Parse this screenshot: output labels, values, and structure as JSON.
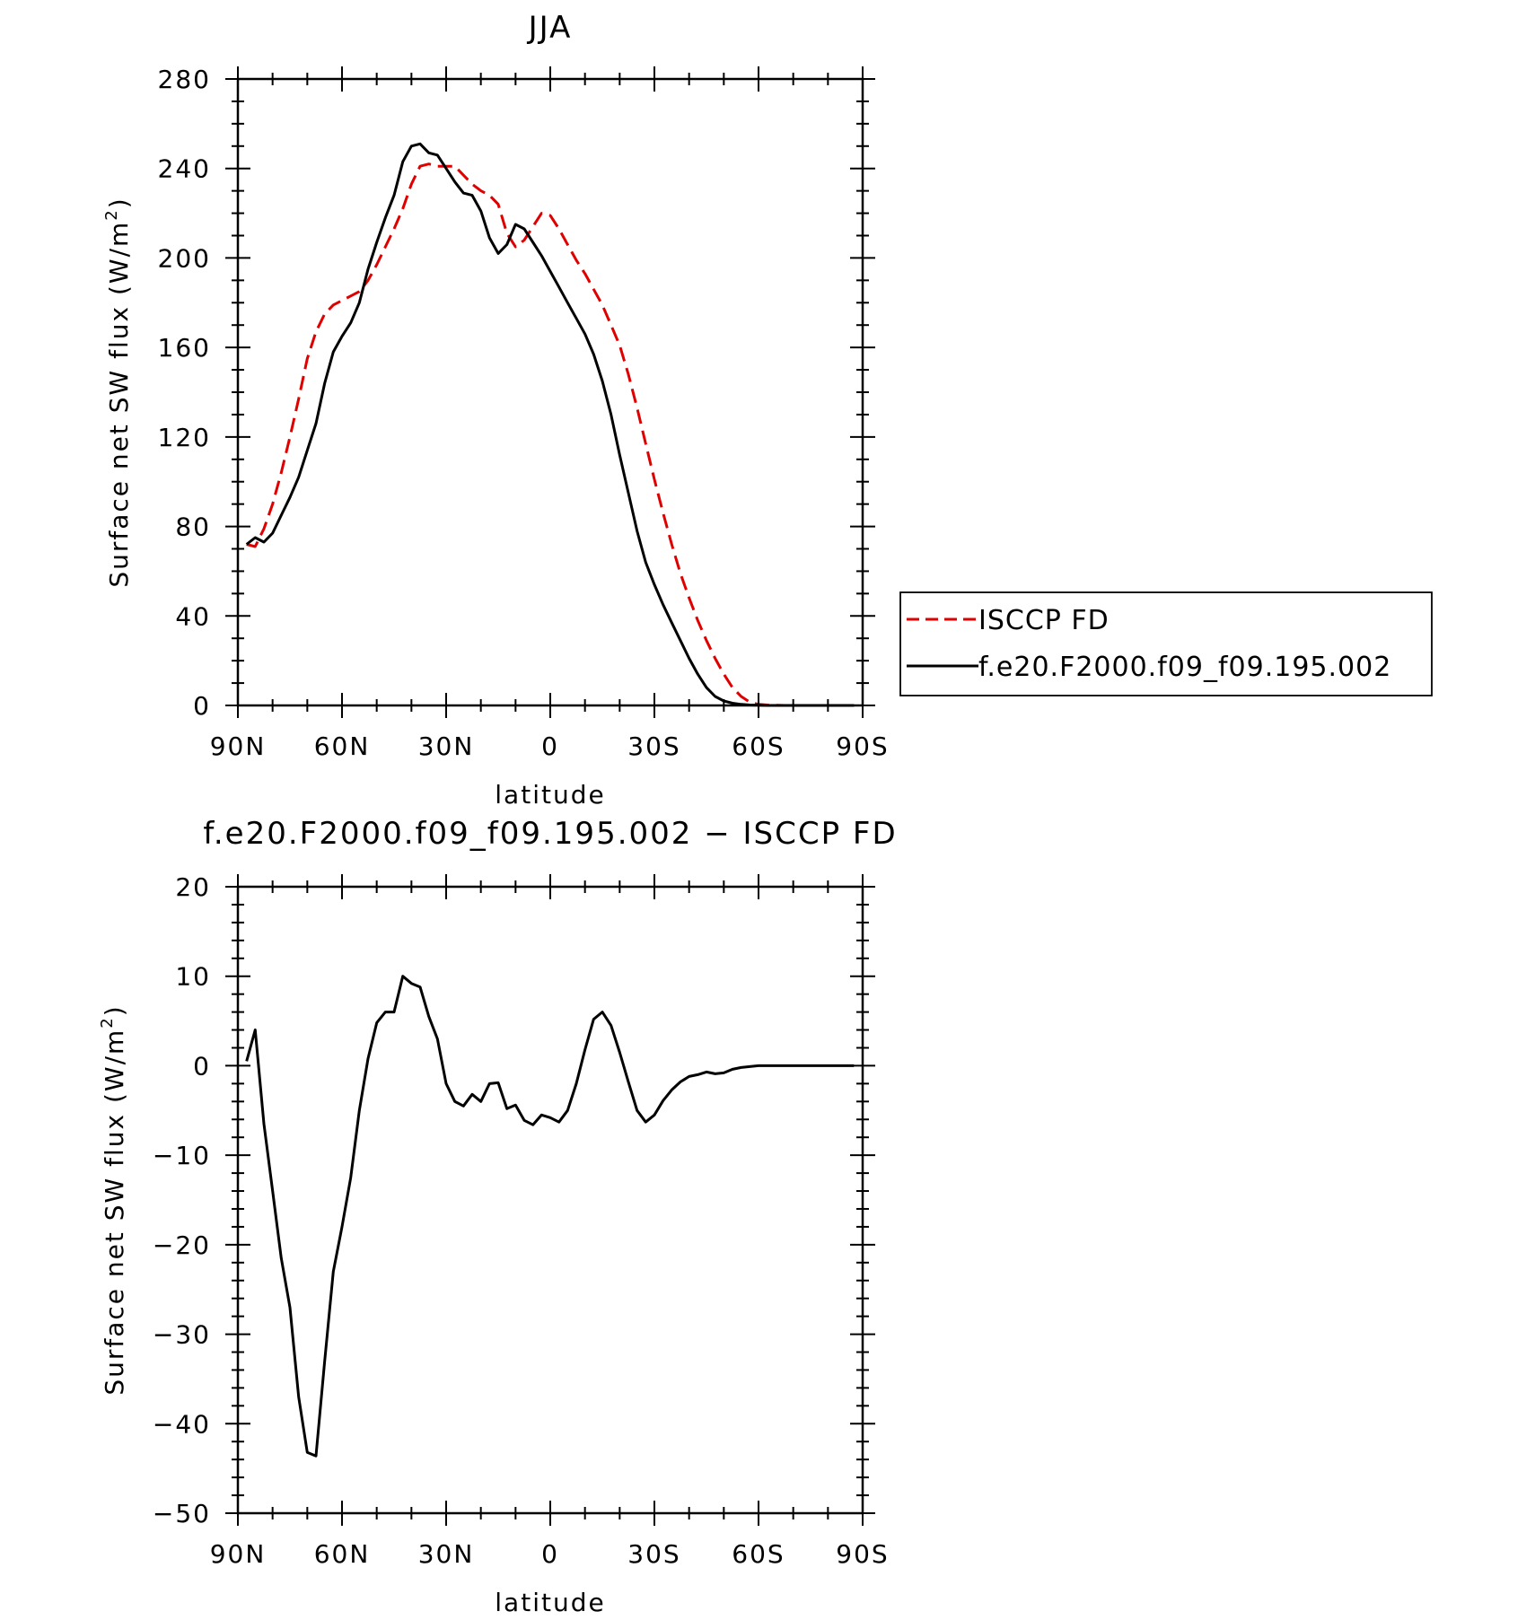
{
  "chart_data": [
    {
      "type": "line",
      "title": "JJA",
      "xlabel": "latitude",
      "ylabel": "Surface net SW flux (W/m",
      "ylabel_sup": "2",
      "ylabel_end": ")",
      "xlim": [
        -90,
        90
      ],
      "ylim": [
        0,
        280
      ],
      "x_direction": "north-to-south",
      "x_ticks": [
        {
          "value": -90,
          "label": "90N"
        },
        {
          "value": -60,
          "label": "60N"
        },
        {
          "value": -30,
          "label": "30N"
        },
        {
          "value": 0,
          "label": "0"
        },
        {
          "value": 30,
          "label": "30S"
        },
        {
          "value": 60,
          "label": "60S"
        },
        {
          "value": 90,
          "label": "90S"
        }
      ],
      "y_ticks": [
        0,
        40,
        80,
        120,
        160,
        200,
        240,
        280
      ],
      "grid": false,
      "legend_position": "right",
      "series": [
        {
          "name": "ISCCP FD",
          "color": "#e00000",
          "dash": "dashed",
          "x": [
            -87.5,
            -85,
            -82.5,
            -80,
            -77.5,
            -75,
            -72.5,
            -70,
            -67.5,
            -65,
            -62.5,
            -60,
            -57.5,
            -55,
            -52.5,
            -50,
            -47.5,
            -45,
            -42.5,
            -40,
            -37.5,
            -35,
            -32.5,
            -30,
            -27.5,
            -25,
            -22.5,
            -20,
            -17.5,
            -15,
            -12.5,
            -10,
            -7.5,
            -5,
            -2.5,
            0,
            2.5,
            5,
            7.5,
            10,
            12.5,
            15,
            17.5,
            20,
            22.5,
            25,
            27.5,
            30,
            32.5,
            35,
            37.5,
            40,
            42.5,
            45,
            47.5,
            50,
            52.5,
            55,
            57.5,
            60,
            62.5,
            65,
            67.5,
            70,
            72.5,
            75,
            77.5,
            80,
            82.5,
            85,
            87.5
          ],
          "y": [
            72,
            71,
            79,
            90,
            104,
            120,
            137,
            155,
            167,
            175,
            179,
            181,
            183,
            185,
            190,
            197,
            205,
            213,
            222,
            233,
            241,
            242,
            241,
            241,
            241,
            237,
            233,
            230,
            228,
            224,
            211,
            205,
            208,
            214,
            220,
            219,
            213,
            206,
            199,
            193,
            186,
            179,
            170,
            161,
            148,
            133,
            117,
            101,
            86,
            72,
            59,
            48,
            38,
            29,
            21,
            14,
            8,
            4,
            1.5,
            0.5,
            0.2,
            0.1,
            0,
            0,
            0,
            0,
            0,
            0,
            0,
            0,
            0
          ]
        },
        {
          "name": "f.e20.F2000.f09_f09.195.002",
          "color": "#000000",
          "dash": "solid",
          "x": [
            -87.5,
            -85,
            -82.5,
            -80,
            -77.5,
            -75,
            -72.5,
            -70,
            -67.5,
            -65,
            -62.5,
            -60,
            -57.5,
            -55,
            -52.5,
            -50,
            -47.5,
            -45,
            -42.5,
            -40,
            -37.5,
            -35,
            -32.5,
            -30,
            -27.5,
            -25,
            -22.5,
            -20,
            -17.5,
            -15,
            -12.5,
            -10,
            -7.5,
            -5,
            -2.5,
            0,
            2.5,
            5,
            7.5,
            10,
            12.5,
            15,
            17.5,
            20,
            22.5,
            25,
            27.5,
            30,
            32.5,
            35,
            37.5,
            40,
            42.5,
            45,
            47.5,
            50,
            52.5,
            55,
            57.5,
            60,
            62.5,
            65,
            67.5,
            70,
            72.5,
            75,
            77.5,
            80,
            82.5,
            85,
            87.5
          ],
          "y": [
            72,
            75,
            73,
            77,
            85,
            93,
            102,
            114,
            126,
            144,
            158,
            165,
            171,
            180,
            195,
            207,
            218,
            228,
            243,
            250,
            251,
            247,
            246,
            240,
            234,
            229,
            228,
            221,
            209,
            202,
            206,
            215,
            213,
            207,
            201,
            194,
            187,
            180,
            173,
            166,
            157,
            145,
            130,
            112,
            95,
            78,
            64,
            54,
            45,
            37,
            29,
            21,
            14,
            8,
            4,
            2,
            1,
            0.5,
            0.2,
            0.1,
            0,
            0,
            0,
            0,
            0,
            0,
            0,
            0,
            0,
            0,
            0
          ]
        }
      ]
    },
    {
      "type": "line",
      "title": "f.e20.F2000.f09_f09.195.002 − ISCCP FD",
      "xlabel": "latitude",
      "ylabel": "Surface net SW flux (W/m",
      "ylabel_sup": "2",
      "ylabel_end": ")",
      "xlim": [
        -90,
        90
      ],
      "ylim": [
        -50,
        20
      ],
      "x_direction": "north-to-south",
      "x_ticks": [
        {
          "value": -90,
          "label": "90N"
        },
        {
          "value": -60,
          "label": "60N"
        },
        {
          "value": -30,
          "label": "30N"
        },
        {
          "value": 0,
          "label": "0"
        },
        {
          "value": 30,
          "label": "30S"
        },
        {
          "value": 60,
          "label": "60S"
        },
        {
          "value": 90,
          "label": "90S"
        }
      ],
      "y_ticks": [
        {
          "value": -50,
          "label": "−50"
        },
        {
          "value": -40,
          "label": "−40"
        },
        {
          "value": -30,
          "label": "−30"
        },
        {
          "value": -20,
          "label": "−20"
        },
        {
          "value": -10,
          "label": "−10"
        },
        {
          "value": 0,
          "label": "0"
        },
        {
          "value": 10,
          "label": "10"
        },
        {
          "value": 20,
          "label": "20"
        }
      ],
      "grid": false,
      "series": [
        {
          "color": "#000000",
          "dash": "solid",
          "x": [
            -87.5,
            -85,
            -82.5,
            -80,
            -77.5,
            -75,
            -72.5,
            -70,
            -67.5,
            -65,
            -62.5,
            -60,
            -57.5,
            -55,
            -52.5,
            -50,
            -47.5,
            -45,
            -42.5,
            -40,
            -37.5,
            -35,
            -32.5,
            -30,
            -27.5,
            -25,
            -22.5,
            -20,
            -17.5,
            -15,
            -12.5,
            -10,
            -7.5,
            -5,
            -2.5,
            0,
            2.5,
            5,
            7.5,
            10,
            12.5,
            15,
            17.5,
            20,
            22.5,
            25,
            27.5,
            30,
            32.5,
            35,
            37.5,
            40,
            42.5,
            45,
            47.5,
            50,
            52.5,
            55,
            57.5,
            60,
            62.5,
            65,
            67.5,
            70,
            72.5,
            75,
            77.5,
            80,
            82.5,
            85,
            87.5
          ],
          "y": [
            0.5,
            4,
            -6.5,
            -14,
            -21.5,
            -27,
            -37,
            -43.2,
            -43.6,
            -33,
            -23,
            -18,
            -12.5,
            -5,
            0.8,
            4.8,
            6,
            6,
            10,
            9.2,
            8.8,
            5.5,
            3,
            -2,
            -4,
            -4.5,
            -3.2,
            -4,
            -2,
            -1.9,
            -4.8,
            -4.4,
            -6.1,
            -6.6,
            -5.5,
            -5.8,
            -6.3,
            -5,
            -2,
            1.8,
            5.2,
            6,
            4.5,
            1.5,
            -1.8,
            -5,
            -6.3,
            -5.5,
            -3.9,
            -2.7,
            -1.8,
            -1.2,
            -1,
            -0.7,
            -0.9,
            -0.8,
            -0.4,
            -0.2,
            -0.1,
            0,
            0,
            0,
            0,
            0,
            0,
            0,
            0,
            0,
            0,
            0,
            0
          ]
        }
      ]
    }
  ]
}
